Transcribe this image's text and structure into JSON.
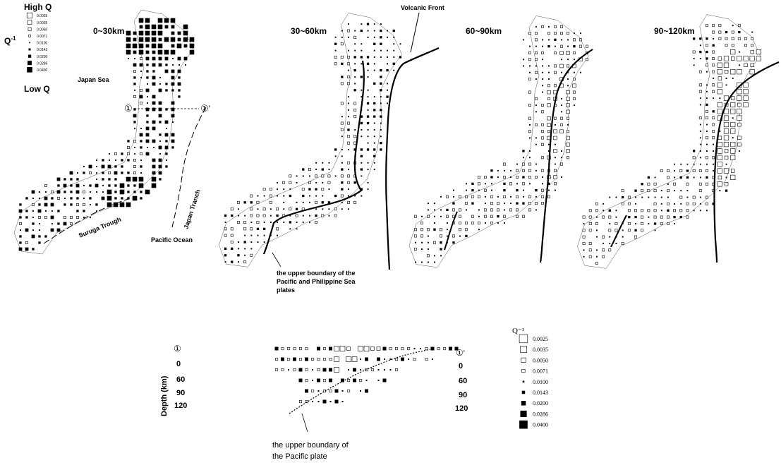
{
  "figure": {
    "legend_top": {
      "high_label": "High Q",
      "low_label": "Low Q",
      "axis_label": "Q",
      "axis_exp": "-1",
      "values": [
        "0.0025",
        "0.0035",
        "0.0050",
        "0.0071",
        "0.0100",
        "0.0143",
        "0.0200",
        "0.0286",
        "0.0400"
      ]
    },
    "panels": [
      {
        "depth_label": "0~30km"
      },
      {
        "depth_label": "30~60km"
      },
      {
        "depth_label": "60~90km"
      },
      {
        "depth_label": "90~120km"
      }
    ],
    "annotations": {
      "volcanic_front": "Volcanic Front",
      "japan_sea": "Japan Sea",
      "pacific_ocean": "Pacific Ocean",
      "suruga_trough": "Suruga Trough",
      "japan_trench": "Japan Tranch",
      "marker_a": "①",
      "marker_b": "①'",
      "upper_boundary_1": "the upper boundary of the",
      "upper_boundary_2": "Pacific and Philippine Sea",
      "upper_boundary_3": "plates"
    },
    "cross_section": {
      "left_marker": "①",
      "right_marker": "①'",
      "depth_axis_label": "Depth (km)",
      "depth_ticks": [
        "0",
        "60",
        "90",
        "120"
      ],
      "caption_line1": "the upper boundary of",
      "caption_line2": "the Pacific plate"
    },
    "legend_bottom": {
      "title": "Q⁻¹",
      "values": [
        "0.0025",
        "0.0035",
        "0.0050",
        "0.0071",
        "0.0100",
        "0.0143",
        "0.0200",
        "0.0286",
        "0.0400"
      ]
    }
  }
}
